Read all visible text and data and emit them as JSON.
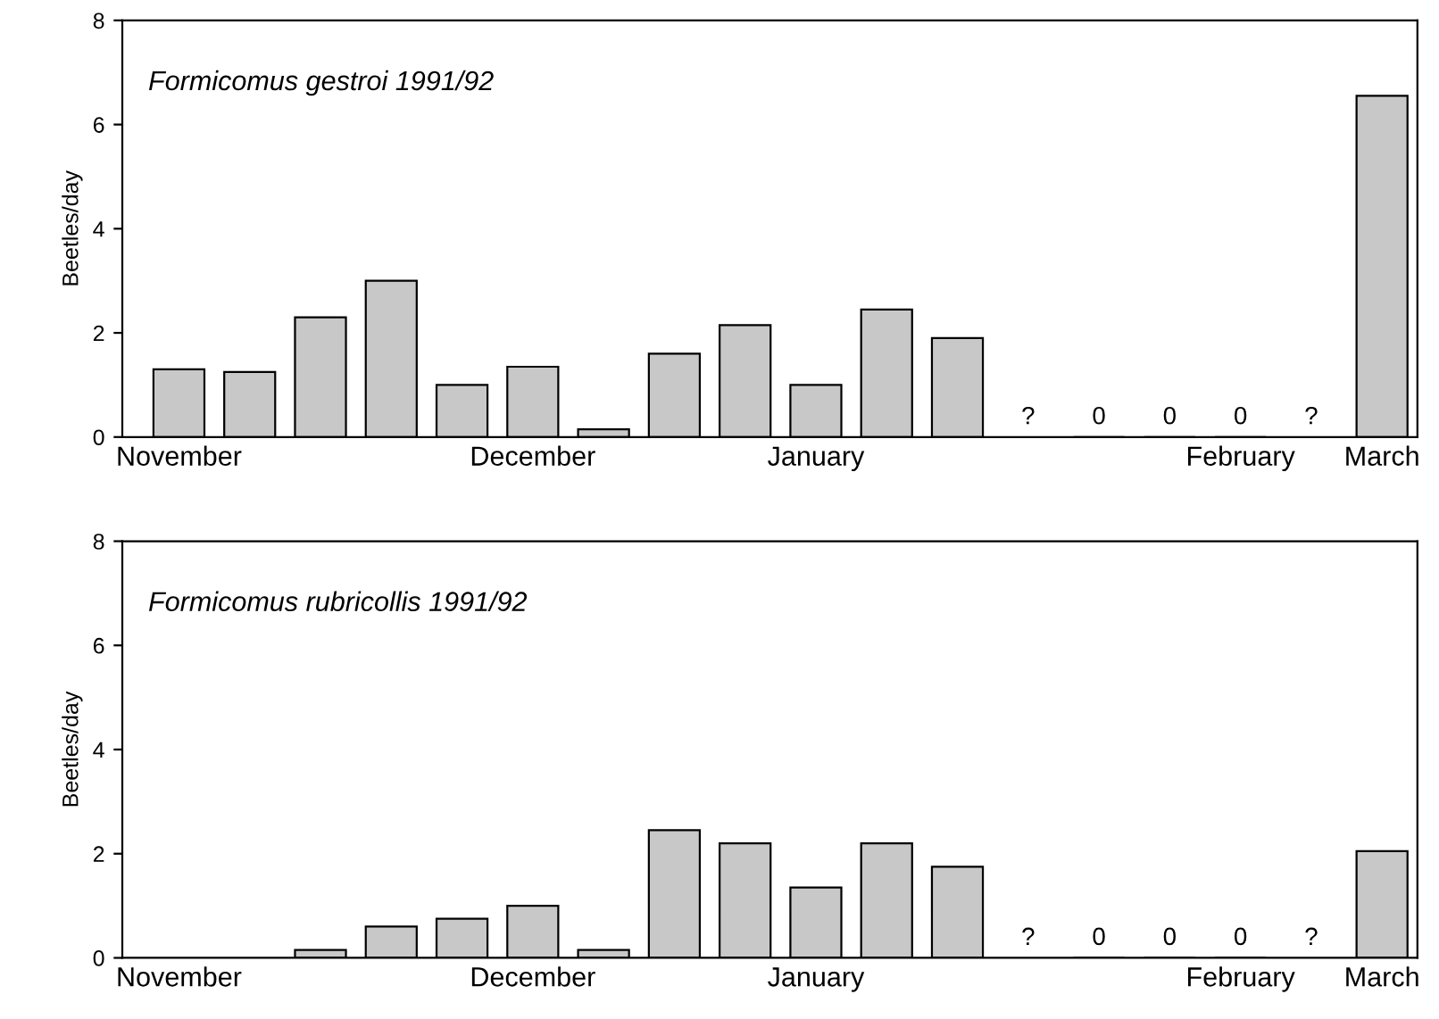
{
  "chart_data": [
    {
      "type": "bar",
      "title": "Formicomus gestroi 1991/92",
      "ylabel": "Beetles/day",
      "categories": [
        "November",
        null,
        null,
        null,
        null,
        "December",
        null,
        null,
        null,
        "January",
        null,
        null,
        null,
        null,
        null,
        "February",
        null,
        "March"
      ],
      "values": [
        1.3,
        1.25,
        2.3,
        3.0,
        1.0,
        1.35,
        0.15,
        1.6,
        2.15,
        1.0,
        2.45,
        1.9,
        null,
        0,
        0,
        0,
        null,
        6.55
      ],
      "value_labels": [
        null,
        null,
        null,
        null,
        null,
        null,
        null,
        null,
        null,
        null,
        null,
        null,
        "?",
        "0",
        "0",
        "0",
        "?",
        null
      ],
      "color": "#c8c8c8",
      "ylim": [
        0,
        8
      ],
      "yticks": [
        0,
        2,
        4,
        6,
        8
      ],
      "grid": false,
      "legend": false
    },
    {
      "type": "bar",
      "title": "Formicomus rubricollis 1991/92",
      "ylabel": "Beetles/day",
      "categories": [
        "November",
        null,
        null,
        null,
        null,
        "December",
        null,
        null,
        null,
        "January",
        null,
        null,
        null,
        null,
        null,
        "February",
        null,
        "March"
      ],
      "values": [
        null,
        null,
        0.15,
        0.6,
        0.75,
        1.0,
        0.15,
        2.45,
        2.2,
        1.35,
        2.2,
        1.75,
        null,
        0,
        0,
        0,
        null,
        2.05
      ],
      "value_labels": [
        null,
        null,
        null,
        null,
        null,
        null,
        null,
        null,
        null,
        null,
        null,
        null,
        "?",
        "0",
        "0",
        "0",
        "?",
        null
      ],
      "color": "#c8c8c8",
      "ylim": [
        0,
        8
      ],
      "yticks": [
        0,
        2,
        4,
        6,
        8
      ],
      "grid": false,
      "legend": false
    }
  ]
}
